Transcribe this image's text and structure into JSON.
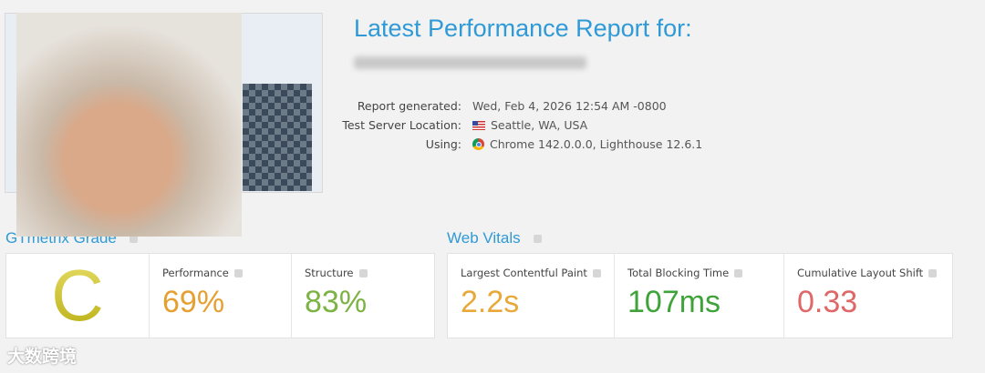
{
  "header": {
    "title": "Latest Performance Report for:"
  },
  "report_info": [
    {
      "label": "Report generated:",
      "value": "Wed, Feb 4, 2026 12:54 AM -0800"
    },
    {
      "label": "Test Server Location:",
      "value": "Seattle, WA, USA"
    },
    {
      "label": "Using:",
      "value": "Chrome 142.0.0.0, Lighthouse 12.6.1"
    }
  ],
  "grade_section": {
    "title": "GTmetrix Grade",
    "grade": "C",
    "metrics": [
      {
        "name": "Performance",
        "value": "69%",
        "color": "#e5a032"
      },
      {
        "name": "Structure",
        "value": "83%",
        "color": "#7cb342"
      }
    ]
  },
  "vitals_section": {
    "title": "Web Vitals",
    "metrics": [
      {
        "name": "Largest Contentful Paint",
        "value": "2.2s",
        "color": "#e8a93a"
      },
      {
        "name": "Total Blocking Time",
        "value": "107ms",
        "color": "#3fa33a"
      },
      {
        "name": "Cumulative Layout Shift",
        "value": "0.33",
        "color": "#e06767"
      }
    ]
  },
  "watermark": "大数跨境"
}
